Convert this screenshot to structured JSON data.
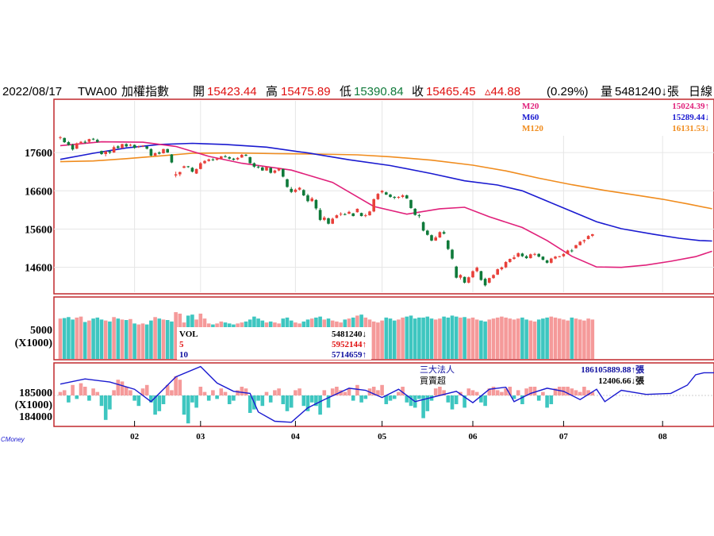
{
  "header": {
    "date": "2022/08/17",
    "symbol": "TWA00",
    "name": "加權指數",
    "open_label": "開",
    "open": "15423.44",
    "high_label": "高",
    "high": "15475.89",
    "low_label": "低",
    "low": "15390.84",
    "close_label": "收",
    "close": "15465.45",
    "change": "▵44.88",
    "change_pct": "(0.29%)",
    "volume_label": "量",
    "volume": "5481240↓張",
    "period": "日線"
  },
  "colors": {
    "up": "#e8403a",
    "down": "#0f7a3a",
    "m20": "#e0207a",
    "m60": "#1a1ad0",
    "m120": "#f08c1e",
    "vol_up": "#f59a9a",
    "vol_down": "#3ec6c0",
    "frame": "#c0282d",
    "blue_text": "#1010a0",
    "red_text": "#e01010"
  },
  "ma_legend": [
    {
      "name": "M20",
      "value": "15024.39↑"
    },
    {
      "name": "M60",
      "value": "15289.44↓"
    },
    {
      "name": "M120",
      "value": "16131.53↓"
    }
  ],
  "vol_legend": [
    {
      "name": "VOL",
      "value": "5481240↓"
    },
    {
      "name": "5",
      "value": "5952144↑"
    },
    {
      "name": "10",
      "value": "5714659↑"
    }
  ],
  "inst_legend": {
    "title": "三大法人",
    "sub": "買賣超",
    "total": "186105889.88↑張",
    "net": "12406.66↓張"
  },
  "watermark": "CMoney",
  "chart_data": {
    "type": "candlestick",
    "price_axis": {
      "ticks": [
        17600,
        16600,
        15600,
        14600
      ],
      "range": [
        13950,
        18950
      ]
    },
    "volume_axis": {
      "tick": "5000",
      "unit": "(X1000)"
    },
    "inst_axis": {
      "ticks": [
        "185000",
        "(X1000)",
        "184000"
      ]
    },
    "months": [
      "02",
      "03",
      "04",
      "05",
      "06",
      "07",
      "08"
    ],
    "candles": [
      [
        17990,
        18030,
        17940,
        18000
      ],
      [
        17980,
        17990,
        17850,
        17870
      ],
      [
        17870,
        17900,
        17780,
        17800
      ],
      [
        17800,
        17830,
        17650,
        17680
      ],
      [
        17700,
        17860,
        17690,
        17840
      ],
      [
        17850,
        17900,
        17820,
        17880
      ],
      [
        17880,
        17920,
        17830,
        17860
      ],
      [
        17880,
        17960,
        17860,
        17950
      ],
      [
        17960,
        17980,
        17920,
        17940
      ],
      [
        17930,
        17960,
        17860,
        17880
      ],
      [
        17640,
        17650,
        17540,
        17560
      ],
      [
        17560,
        17640,
        17500,
        17630
      ],
      [
        17630,
        17660,
        17560,
        17600
      ],
      [
        17600,
        17780,
        17590,
        17740
      ],
      [
        17760,
        17790,
        17700,
        17720
      ],
      [
        17720,
        17830,
        17700,
        17820
      ],
      [
        17820,
        17840,
        17740,
        17760
      ],
      [
        17780,
        17830,
        17760,
        17800
      ],
      [
        17800,
        17810,
        17700,
        17720
      ],
      [
        17740,
        17780,
        17720,
        17760
      ],
      [
        17760,
        17790,
        17740,
        17780
      ],
      [
        17760,
        17770,
        17680,
        17700
      ],
      [
        17690,
        17710,
        17500,
        17520
      ],
      [
        17520,
        17600,
        17510,
        17580
      ],
      [
        17600,
        17630,
        17550,
        17570
      ],
      [
        17580,
        17700,
        17570,
        17690
      ],
      [
        17690,
        17700,
        17590,
        17600
      ],
      [
        17550,
        17560,
        17320,
        17340
      ],
      [
        17000,
        17100,
        16950,
        17030
      ],
      [
        17030,
        17100,
        16980,
        17090
      ],
      [
        17200,
        17260,
        17190,
        17240
      ],
      [
        17240,
        17250,
        17200,
        17220
      ],
      [
        17200,
        17220,
        17080,
        17100
      ],
      [
        17050,
        17180,
        17040,
        17170
      ],
      [
        17170,
        17350,
        17160,
        17320
      ],
      [
        17320,
        17400,
        17300,
        17380
      ],
      [
        17380,
        17440,
        17360,
        17420
      ],
      [
        17420,
        17450,
        17380,
        17400
      ],
      [
        17410,
        17460,
        17390,
        17440
      ],
      [
        17440,
        17510,
        17420,
        17500
      ],
      [
        17500,
        17540,
        17470,
        17480
      ],
      [
        17480,
        17500,
        17420,
        17440
      ],
      [
        17440,
        17460,
        17390,
        17410
      ],
      [
        17420,
        17480,
        17400,
        17460
      ],
      [
        17470,
        17560,
        17460,
        17540
      ],
      [
        17540,
        17560,
        17500,
        17520
      ],
      [
        17480,
        17490,
        17310,
        17320
      ],
      [
        17320,
        17340,
        17200,
        17230
      ],
      [
        17230,
        17260,
        17180,
        17210
      ],
      [
        17210,
        17230,
        17120,
        17130
      ],
      [
        17130,
        17240,
        17120,
        17220
      ],
      [
        17200,
        17210,
        17050,
        17070
      ],
      [
        17070,
        17150,
        17050,
        17130
      ],
      [
        17130,
        17200,
        17110,
        17180
      ],
      [
        17170,
        17180,
        16950,
        16970
      ],
      [
        16900,
        16920,
        16680,
        16700
      ],
      [
        16650,
        16700,
        16540,
        16570
      ],
      [
        16570,
        16660,
        16550,
        16630
      ],
      [
        16630,
        16700,
        16610,
        16680
      ],
      [
        16620,
        16640,
        16460,
        16480
      ],
      [
        16480,
        16520,
        16300,
        16330
      ],
      [
        16330,
        16440,
        16310,
        16400
      ],
      [
        16360,
        16380,
        16100,
        16140
      ],
      [
        16100,
        16150,
        15810,
        15840
      ],
      [
        15840,
        15940,
        15810,
        15900
      ],
      [
        15880,
        15900,
        15720,
        15740
      ],
      [
        15740,
        15900,
        15730,
        15870
      ],
      [
        15890,
        15980,
        15880,
        15960
      ],
      [
        15980,
        16040,
        15940,
        16000
      ],
      [
        15990,
        16020,
        15960,
        15980
      ],
      [
        16000,
        16080,
        15990,
        16050
      ],
      [
        16010,
        16020,
        15930,
        15940
      ],
      [
        16040,
        16140,
        16030,
        16130
      ],
      [
        16020,
        16030,
        15930,
        15940
      ],
      [
        15950,
        16000,
        15910,
        15960
      ],
      [
        15960,
        16080,
        15950,
        16060
      ],
      [
        16060,
        16400,
        16040,
        16380
      ],
      [
        16380,
        16540,
        16360,
        16520
      ],
      [
        16560,
        16620,
        16530,
        16600
      ],
      [
        16560,
        16580,
        16490,
        16500
      ],
      [
        16500,
        16520,
        16420,
        16440
      ],
      [
        16440,
        16460,
        16380,
        16420
      ],
      [
        16420,
        16460,
        16390,
        16440
      ],
      [
        16440,
        16510,
        16410,
        16480
      ],
      [
        16480,
        16500,
        16390,
        16400
      ],
      [
        16360,
        16370,
        16130,
        16150
      ],
      [
        16130,
        16150,
        15950,
        15970
      ],
      [
        15960,
        16000,
        15890,
        15950
      ],
      [
        15780,
        15800,
        15540,
        15560
      ],
      [
        15560,
        15580,
        15430,
        15450
      ],
      [
        15440,
        15460,
        15280,
        15300
      ],
      [
        15300,
        15420,
        15290,
        15380
      ],
      [
        15380,
        15540,
        15370,
        15520
      ],
      [
        15520,
        15560,
        15460,
        15480
      ],
      [
        15300,
        15320,
        15050,
        15080
      ],
      [
        15060,
        15080,
        14800,
        14830
      ],
      [
        14620,
        14640,
        14310,
        14330
      ],
      [
        14330,
        14420,
        14280,
        14400
      ],
      [
        14350,
        14360,
        14180,
        14200
      ],
      [
        14200,
        14360,
        14180,
        14340
      ],
      [
        14340,
        14520,
        14320,
        14500
      ],
      [
        14500,
        14620,
        14470,
        14590
      ],
      [
        14500,
        14510,
        14250,
        14270
      ],
      [
        14300,
        14330,
        14100,
        14130
      ],
      [
        14200,
        14330,
        14180,
        14320
      ],
      [
        14320,
        14420,
        14300,
        14400
      ],
      [
        14410,
        14570,
        14400,
        14550
      ],
      [
        14550,
        14620,
        14520,
        14600
      ],
      [
        14600,
        14760,
        14580,
        14740
      ],
      [
        14740,
        14830,
        14720,
        14820
      ],
      [
        14820,
        14920,
        14800,
        14860
      ],
      [
        14880,
        14990,
        14860,
        14970
      ],
      [
        14960,
        14980,
        14870,
        14890
      ],
      [
        14890,
        14920,
        14820,
        14840
      ],
      [
        14840,
        14960,
        14830,
        14940
      ],
      [
        14940,
        14980,
        14900,
        14950
      ],
      [
        14950,
        14970,
        14860,
        14880
      ],
      [
        14880,
        14890,
        14780,
        14800
      ],
      [
        14780,
        14800,
        14700,
        14720
      ],
      [
        14720,
        14850,
        14700,
        14830
      ],
      [
        14830,
        14900,
        14810,
        14880
      ],
      [
        14880,
        14900,
        14860,
        14890
      ],
      [
        14890,
        14970,
        14870,
        14950
      ],
      [
        14950,
        15060,
        14940,
        15040
      ],
      [
        15040,
        15080,
        14990,
        15020
      ],
      [
        15100,
        15190,
        15090,
        15180
      ],
      [
        15180,
        15290,
        15170,
        15270
      ],
      [
        15280,
        15330,
        15230,
        15310
      ],
      [
        15340,
        15440,
        15330,
        15420
      ],
      [
        15423.44,
        15475.89,
        15390.84,
        15465.45
      ]
    ],
    "ma20": [
      [
        0,
        17780
      ],
      [
        10,
        17880
      ],
      [
        20,
        17870
      ],
      [
        28,
        17760
      ],
      [
        36,
        17500
      ],
      [
        44,
        17320
      ],
      [
        56,
        17140
      ],
      [
        66,
        16820
      ],
      [
        76,
        16190
      ],
      [
        84,
        15990
      ],
      [
        92,
        16130
      ],
      [
        98,
        16170
      ],
      [
        104,
        15920
      ],
      [
        112,
        15640
      ],
      [
        118,
        15300
      ],
      [
        124,
        14890
      ],
      [
        130,
        14610
      ],
      [
        136,
        14600
      ],
      [
        142,
        14660
      ],
      [
        148,
        14760
      ],
      [
        154,
        14880
      ],
      [
        158,
        15020
      ]
    ],
    "ma60": [
      [
        0,
        17420
      ],
      [
        8,
        17580
      ],
      [
        16,
        17720
      ],
      [
        24,
        17810
      ],
      [
        32,
        17840
      ],
      [
        40,
        17810
      ],
      [
        50,
        17740
      ],
      [
        60,
        17590
      ],
      [
        70,
        17410
      ],
      [
        80,
        17260
      ],
      [
        90,
        17050
      ],
      [
        98,
        16860
      ],
      [
        106,
        16750
      ],
      [
        112,
        16600
      ],
      [
        118,
        16330
      ],
      [
        124,
        16060
      ],
      [
        130,
        15790
      ],
      [
        136,
        15610
      ],
      [
        144,
        15460
      ],
      [
        150,
        15360
      ],
      [
        155,
        15300
      ],
      [
        158,
        15289
      ]
    ],
    "ma120": [
      [
        0,
        17360
      ],
      [
        8,
        17380
      ],
      [
        16,
        17440
      ],
      [
        24,
        17510
      ],
      [
        32,
        17580
      ],
      [
        42,
        17590
      ],
      [
        52,
        17570
      ],
      [
        62,
        17560
      ],
      [
        72,
        17540
      ],
      [
        80,
        17490
      ],
      [
        90,
        17400
      ],
      [
        100,
        17270
      ],
      [
        108,
        17120
      ],
      [
        116,
        16930
      ],
      [
        124,
        16760
      ],
      [
        132,
        16610
      ],
      [
        140,
        16480
      ],
      [
        146,
        16380
      ],
      [
        152,
        16260
      ],
      [
        158,
        16131
      ]
    ],
    "volumes": [
      82,
      83,
      85,
      80,
      84,
      86,
      75,
      78,
      82,
      84,
      80,
      78,
      76,
      85,
      82,
      80,
      79,
      81,
      72,
      70,
      72,
      70,
      78,
      85,
      82,
      80,
      79,
      76,
      95,
      92,
      74,
      88,
      90,
      80,
      92,
      82,
      72,
      70,
      72,
      76,
      74,
      72,
      70,
      72,
      74,
      76,
      80,
      86,
      82,
      78,
      74,
      76,
      74,
      72,
      82,
      84,
      78,
      74,
      72,
      76,
      80,
      82,
      84,
      86,
      80,
      82,
      78,
      76,
      74,
      80,
      82,
      84,
      88,
      90,
      84,
      80,
      76,
      74,
      78,
      84,
      82,
      78,
      80,
      84,
      86,
      88,
      82,
      84,
      84,
      86,
      82,
      80,
      82,
      86,
      84,
      88,
      86,
      84,
      85,
      82,
      84,
      80,
      78,
      76,
      80,
      82,
      84,
      86,
      84,
      82,
      80,
      82,
      84,
      80,
      78,
      76,
      80,
      82,
      84,
      86,
      84,
      82,
      80,
      78,
      84,
      82,
      80,
      78,
      82,
      80
    ],
    "inst": [
      0.2,
      0.3,
      -0.4,
      0.6,
      -0.2,
      0.7,
      0.5,
      -0.3,
      0.4,
      0.2,
      -0.6,
      -1.4,
      -0.8,
      0.3,
      0.9,
      0.8,
      0.5,
      0.3,
      -0.3,
      -0.6,
      0.4,
      0.6,
      -0.4,
      -1.1,
      -0.9,
      -0.5,
      0.6,
      0.3,
      1.1,
      0.9,
      -1.1,
      -1.6,
      -0.4,
      -0.7,
      0.5,
      0.2,
      -0.3,
      0.3,
      -0.2,
      0.4,
      0.2,
      -0.5,
      -0.3,
      0.3,
      0.5,
      0.4,
      -1.0,
      -0.8,
      -0.3,
      -0.6,
      0.2,
      -0.4,
      0.3,
      0.4,
      -0.5,
      -0.9,
      -0.7,
      0.3,
      0.4,
      -0.6,
      -0.9,
      -0.4,
      -0.6,
      -1.1,
      0.3,
      -0.7,
      0.4,
      0.5,
      0.3,
      0.2,
      0.4,
      -0.3,
      0.6,
      -0.4,
      -0.2,
      0.4,
      0.5,
      0.3,
      0.6,
      -0.5,
      -0.3,
      -0.2,
      0.2,
      0.5,
      -0.4,
      -0.6,
      -0.7,
      -0.2,
      -1.3,
      -0.9,
      -0.3,
      0.4,
      0.5,
      0.3,
      -0.4,
      -0.8,
      -0.5,
      0.2,
      -0.7,
      0.4,
      0.3,
      0.2,
      -0.4,
      -0.6,
      0.4,
      0.5,
      0.3,
      0.2,
      0.4,
      0.5,
      -0.2,
      0.3,
      -0.5,
      0.4,
      0.6,
      0.5,
      -0.3,
      0.2,
      -0.7,
      -0.5,
      0.4,
      0.6,
      0.9,
      0.7,
      0.4,
      0.3,
      0.2,
      0.5,
      0.3,
      0.2
    ],
    "inst_line": [
      [
        0,
        0.55
      ],
      [
        6,
        0.8
      ],
      [
        12,
        0.65
      ],
      [
        18,
        0.3
      ],
      [
        22,
        -0.3
      ],
      [
        28,
        0.9
      ],
      [
        34,
        1.4
      ],
      [
        38,
        0.6
      ],
      [
        42,
        0.2
      ],
      [
        46,
        0.1
      ],
      [
        48,
        -0.8
      ],
      [
        52,
        -1.25
      ],
      [
        56,
        -1.3
      ],
      [
        60,
        -0.6
      ],
      [
        64,
        -0.2
      ],
      [
        70,
        0.35
      ],
      [
        74,
        0.25
      ],
      [
        78,
        -0.1
      ],
      [
        82,
        0.3
      ],
      [
        86,
        -0.3
      ],
      [
        90,
        -0.1
      ],
      [
        96,
        0.2
      ],
      [
        100,
        -0.35
      ],
      [
        104,
        0.3
      ],
      [
        108,
        0.4
      ],
      [
        110,
        -0.3
      ],
      [
        114,
        0.1
      ],
      [
        118,
        0.35
      ],
      [
        122,
        0.2
      ],
      [
        126,
        -0.2
      ],
      [
        130,
        0.3
      ],
      [
        132,
        -0.3
      ],
      [
        136,
        0.25
      ],
      [
        142,
        0.05
      ],
      [
        148,
        0.1
      ],
      [
        152,
        0.5
      ],
      [
        154,
        1.0
      ],
      [
        156,
        1.1
      ],
      [
        159,
        1.1
      ]
    ]
  }
}
